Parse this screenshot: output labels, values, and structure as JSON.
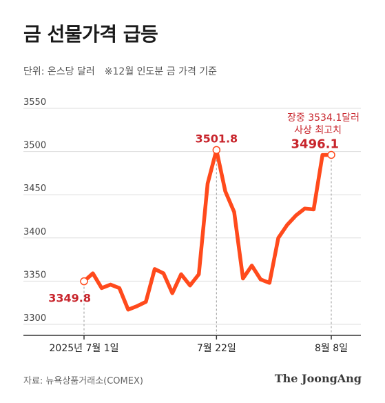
{
  "header": {
    "title": "금 선물가격 급등",
    "unit": "단위: 온스당 달러",
    "note": "※12월 인도분 금 가격 기준"
  },
  "footer": {
    "source": "자료: 뉴욕상품거래소(COMEX)",
    "brand": "The JoongAng"
  },
  "colors": {
    "line": "#ff4a1c",
    "label": "#c8252c",
    "grid": "#dddddd",
    "axis": "#333333"
  },
  "chart_data": {
    "type": "line",
    "title": "금 선물가격 급등",
    "ylim": [
      3300,
      3550
    ],
    "yticks": [
      "3550",
      "3500",
      "3450",
      "3400",
      "3350",
      "3300"
    ],
    "xtick_labels": [
      "2025년 7월 1일",
      "7월 22일",
      "8월 8일"
    ],
    "grid": true,
    "annotations": {
      "start_value": "3349.8",
      "peak_value": "3501.8",
      "end_value": "3496.1",
      "intraday_line1": "장중 3534.1달러",
      "intraday_line2": "사상 최고치"
    },
    "series": [
      {
        "values": [
          3349.8,
          3359,
          3342,
          3346,
          3342,
          3317,
          3321,
          3326,
          3364,
          3359,
          3336,
          3358,
          3345,
          3358,
          3463,
          3501.8,
          3454,
          3430,
          3353,
          3368,
          3352,
          3348,
          3400,
          3415,
          3426,
          3434,
          3433,
          3496,
          3496.1
        ]
      }
    ]
  }
}
